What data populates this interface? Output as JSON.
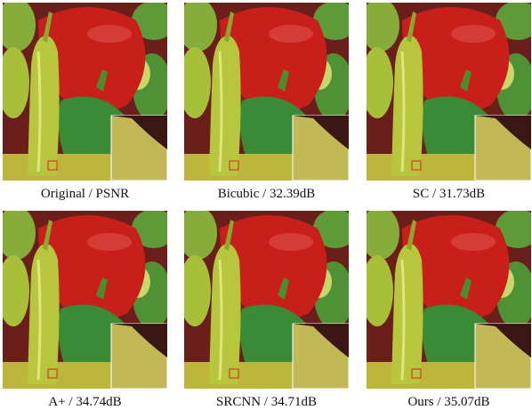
{
  "figure": {
    "panels": [
      {
        "caption": "Original / PSNR"
      },
      {
        "caption": "Bicubic / 32.39dB"
      },
      {
        "caption": "SC / 31.73dB"
      },
      {
        "caption": "A+ / 34.74dB"
      },
      {
        "caption": "SRCNN / 34.71dB"
      },
      {
        "caption": "Ours / 35.07dB"
      }
    ]
  }
}
